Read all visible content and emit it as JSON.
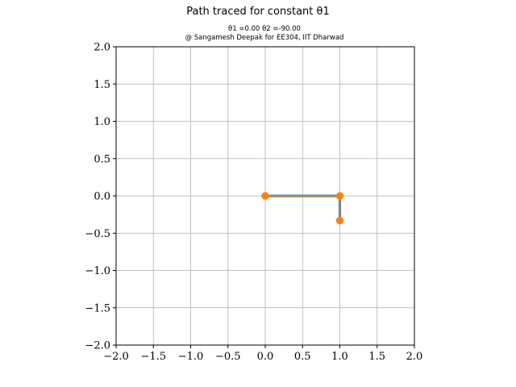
{
  "chart_data": {
    "type": "line",
    "title": "Path traced for constant θ1",
    "subtitle_line1": "θ1 =0.00 θ2 =-90.00",
    "subtitle_line2": "@ Sangamesh Deepak for EE304, IIT Dharwad",
    "xlim": [
      -2.0,
      2.0
    ],
    "ylim": [
      -2.0,
      2.0
    ],
    "xticks": [
      -2.0,
      -1.5,
      -1.0,
      -0.5,
      0.0,
      0.5,
      1.0,
      1.5,
      2.0
    ],
    "yticks": [
      -2.0,
      -1.5,
      -1.0,
      -0.5,
      0.0,
      0.5,
      1.0,
      1.5,
      2.0
    ],
    "xtick_labels": [
      "−2.0",
      "−1.5",
      "−1.0",
      "−0.5",
      "0.0",
      "0.5",
      "1.0",
      "1.5",
      "2.0"
    ],
    "ytick_labels": [
      "−2.0",
      "−1.5",
      "−1.0",
      "−0.5",
      "0.0",
      "0.5",
      "1.0",
      "1.5",
      "2.0"
    ],
    "grid": true,
    "series": [
      {
        "x": [
          0.0,
          1.0,
          1.0
        ],
        "y": [
          0.0,
          0.0,
          -0.33
        ],
        "color": "#ff7f0e",
        "edge_color": "#1f77b4",
        "marker": "circle"
      }
    ]
  }
}
